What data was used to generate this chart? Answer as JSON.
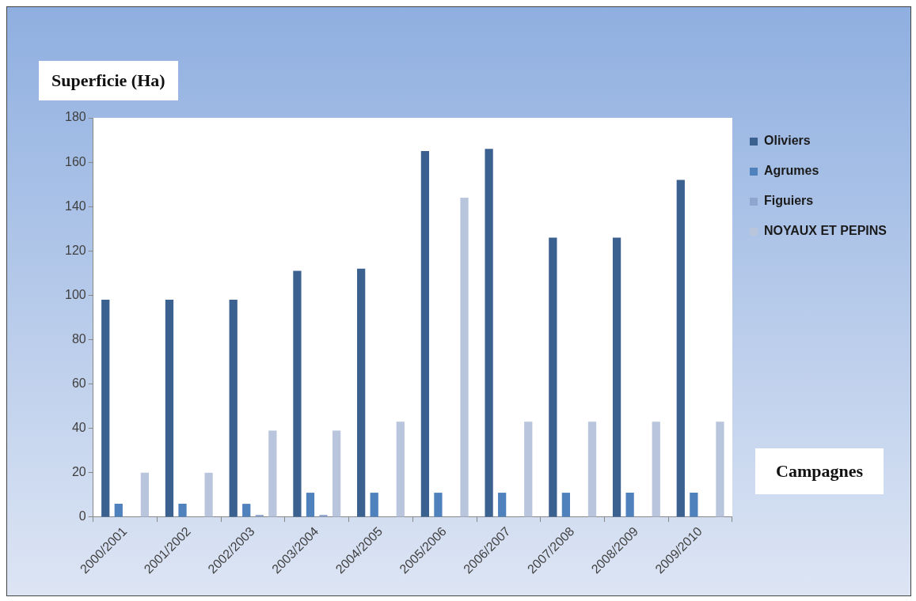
{
  "chart_data": {
    "type": "bar",
    "xlabel": "Campagnes",
    "ylabel": "Superficie (Ha)",
    "categories": [
      "2000/2001",
      "2001/2002",
      "2002/2003",
      "2003/2004",
      "2004/2005",
      "2005/2006",
      "2006/2007",
      "2007/2008",
      "2008/2009",
      "2009/2010"
    ],
    "series": [
      {
        "name": "Oliviers",
        "color": "#3b6190",
        "values": [
          98,
          98,
          98,
          111,
          112,
          165,
          166,
          126,
          126,
          152
        ]
      },
      {
        "name": "Agrumes",
        "color": "#4f81bd",
        "values": [
          6,
          6,
          6,
          11,
          11,
          11,
          11,
          11,
          11,
          11
        ]
      },
      {
        "name": "Figuiers",
        "color": "#8ea5cf",
        "values": [
          0,
          0,
          1,
          1,
          0,
          0,
          0,
          0,
          0,
          0
        ]
      },
      {
        "name": "NOYAUX ET PEPINS",
        "color": "#b9c5dc",
        "values": [
          20,
          20,
          39,
          39,
          43,
          144,
          43,
          43,
          43,
          43
        ]
      }
    ],
    "ylim": [
      0,
      180
    ],
    "yticks": [
      0,
      20,
      40,
      60,
      80,
      100,
      120,
      140,
      160,
      180
    ],
    "grid": false,
    "legend": "top right"
  }
}
